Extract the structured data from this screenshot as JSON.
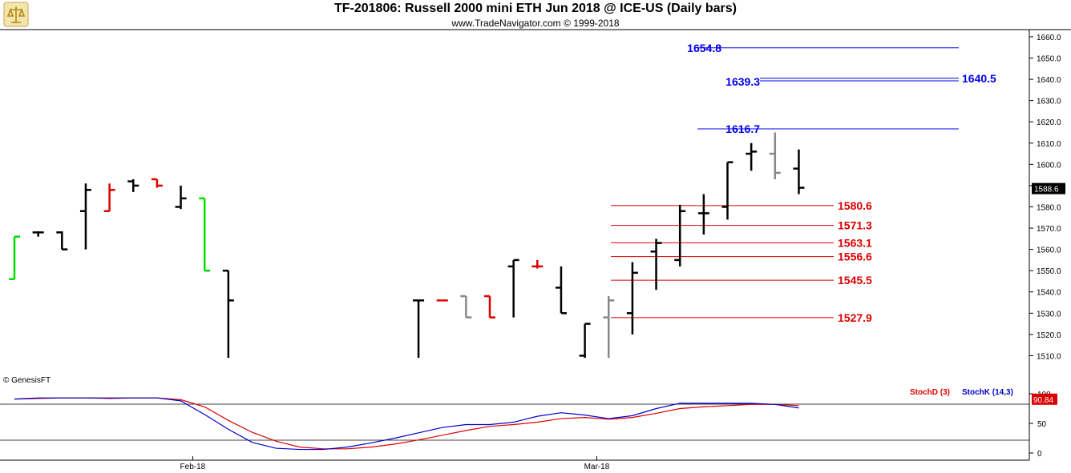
{
  "header": {
    "title": "TF-201806:  Russell 2000 mini ETH Jun 2018 @ ICE-US  (Daily bars)",
    "subtitle": "www.TradeNavigator.com © 1999-2018",
    "watermark": "© GenesisFT"
  },
  "colors": {
    "up": "#00dd00",
    "down": "#dd0000",
    "neutral": "#000000",
    "gray": "#888888",
    "fib_blue": "#0000ee",
    "fib_red": "#dd0000",
    "stoch_d": "#dd0000",
    "stoch_k": "#0000cc"
  },
  "chart_data": [
    {
      "type": "ohlc",
      "yaxis_ticks": [
        "1660.0",
        "1650.0",
        "1640.0",
        "1630.0",
        "1620.0",
        "1610.0",
        "1600.0",
        "1590.0",
        "1580.0",
        "1570.0",
        "1560.0",
        "1550.0",
        "1540.0",
        "1530.0",
        "1520.0",
        "1510.0"
      ],
      "ylim": [
        1500,
        1663
      ],
      "last_price": "1588.6",
      "x_tick_labels": [
        {
          "label": "Feb-18",
          "bar": 7.5
        },
        {
          "label": "Mar-18",
          "bar": 24.5
        }
      ],
      "bars": [
        {
          "bar": 0,
          "o": 1546,
          "h": 1566,
          "l": 1546,
          "c": 1566,
          "color": "up"
        },
        {
          "bar": 1,
          "o": 1568,
          "h": 1568.5,
          "l": 1566,
          "c": 1568,
          "color": "neutral"
        },
        {
          "bar": 2,
          "o": 1568,
          "h": 1568.5,
          "l": 1560,
          "c": 1560,
          "color": "neutral"
        },
        {
          "bar": 3,
          "o": 1578,
          "h": 1591,
          "l": 1560,
          "c": 1588,
          "color": "neutral"
        },
        {
          "bar": 4,
          "o": 1578,
          "h": 1591,
          "l": 1578,
          "c": 1588,
          "color": "down"
        },
        {
          "bar": 5,
          "o": 1592,
          "h": 1593,
          "l": 1587,
          "c": 1590,
          "color": "neutral"
        },
        {
          "bar": 6,
          "o": 1593,
          "h": 1593,
          "l": 1589,
          "c": 1590,
          "color": "down"
        },
        {
          "bar": 7,
          "o": 1580,
          "h": 1590,
          "l": 1579,
          "c": 1584,
          "color": "neutral"
        },
        {
          "bar": 8,
          "o": 1584,
          "h": 1584,
          "l": 1550,
          "c": 1550,
          "color": "up"
        },
        {
          "bar": 9,
          "o": 1550,
          "h": 1550,
          "l": 1509,
          "c": 1536,
          "color": "neutral"
        },
        {
          "bar": 17,
          "o": 1536,
          "h": 1536,
          "l": 1509,
          "c": 1536,
          "color": "neutral"
        },
        {
          "bar": 18,
          "o": 1536,
          "h": 1536,
          "l": 1536,
          "c": 1536,
          "color": "down"
        },
        {
          "bar": 19,
          "o": 1538,
          "h": 1538,
          "l": 1528,
          "c": 1528,
          "color": "gray"
        },
        {
          "bar": 20,
          "o": 1538,
          "h": 1538,
          "l": 1528,
          "c": 1528,
          "color": "down"
        },
        {
          "bar": 21,
          "o": 1552,
          "h": 1555,
          "l": 1528,
          "c": 1555,
          "color": "neutral"
        },
        {
          "bar": 22,
          "o": 1552,
          "h": 1555,
          "l": 1551,
          "c": 1552,
          "color": "down"
        },
        {
          "bar": 23,
          "o": 1542,
          "h": 1552,
          "l": 1530,
          "c": 1530,
          "color": "neutral"
        },
        {
          "bar": 24,
          "o": 1510,
          "h": 1525,
          "l": 1509,
          "c": 1525,
          "color": "neutral"
        },
        {
          "bar": 25,
          "o": 1528,
          "h": 1538,
          "l": 1509,
          "c": 1536,
          "color": "gray"
        },
        {
          "bar": 26,
          "o": 1530,
          "h": 1554,
          "l": 1520,
          "c": 1549,
          "color": "neutral"
        },
        {
          "bar": 27,
          "o": 1559,
          "h": 1565,
          "l": 1541,
          "c": 1563,
          "color": "neutral"
        },
        {
          "bar": 28,
          "o": 1555,
          "h": 1581,
          "l": 1552,
          "c": 1578,
          "color": "neutral"
        },
        {
          "bar": 29,
          "o": 1577,
          "h": 1586,
          "l": 1567,
          "c": 1577,
          "color": "neutral"
        },
        {
          "bar": 30,
          "o": 1580,
          "h": 1601,
          "l": 1574,
          "c": 1601,
          "color": "neutral"
        },
        {
          "bar": 31,
          "o": 1605,
          "h": 1610,
          "l": 1597,
          "c": 1606,
          "color": "neutral"
        },
        {
          "bar": 32,
          "o": 1605,
          "h": 1615,
          "l": 1593,
          "c": 1596,
          "color": "gray"
        },
        {
          "bar": 33,
          "o": 1598,
          "h": 1607,
          "l": 1586,
          "c": 1589,
          "color": "neutral"
        }
      ],
      "fib_levels_blue": [
        {
          "value": 1654.8,
          "label": "1654.8"
        },
        {
          "value": 1639.3,
          "label": "1639.3"
        },
        {
          "value": 1640.5,
          "label": "1640.5"
        },
        {
          "value": 1616.7,
          "label": "1616.7"
        }
      ],
      "fib_levels_red": [
        {
          "value": 1580.6,
          "label": "1580.6"
        },
        {
          "value": 1571.3,
          "label": "1571.3"
        },
        {
          "value": 1563.1,
          "label": "1563.1"
        },
        {
          "value": 1556.6,
          "label": "1556.6"
        },
        {
          "value": 1545.5,
          "label": "1545.5"
        },
        {
          "value": 1527.9,
          "label": "1527.9"
        }
      ]
    },
    {
      "type": "line",
      "ylim": [
        0,
        100
      ],
      "yaxis_ticks": [
        "100",
        "50",
        "0"
      ],
      "readout": "90.84",
      "legend": [
        "StochD (3)",
        "StochK (14,3)"
      ],
      "series": [
        {
          "name": "StochD (3)",
          "color": "stoch_d",
          "x": [
            0,
            1,
            2,
            3,
            4,
            5,
            6,
            7,
            8,
            9,
            10,
            11,
            12,
            13,
            14,
            15,
            16,
            17,
            18,
            19,
            20,
            21,
            22,
            23,
            24,
            25,
            26,
            27,
            28,
            29,
            30,
            31,
            32,
            33
          ],
          "y": [
            91,
            92,
            93,
            93,
            92,
            93,
            93,
            90,
            78,
            55,
            35,
            20,
            10,
            7,
            7,
            10,
            15,
            22,
            30,
            38,
            45,
            48,
            52,
            58,
            60,
            57,
            60,
            67,
            75,
            78,
            80,
            82,
            82,
            80
          ]
        },
        {
          "name": "StochK (14,3)",
          "color": "stoch_k",
          "x": [
            0,
            1,
            2,
            3,
            4,
            5,
            6,
            7,
            8,
            9,
            10,
            11,
            12,
            13,
            14,
            15,
            16,
            17,
            18,
            19,
            20,
            21,
            22,
            23,
            24,
            25,
            26,
            27,
            28,
            29,
            30,
            31,
            32,
            33
          ],
          "y": [
            91,
            93,
            93,
            93,
            93,
            93,
            93,
            88,
            65,
            40,
            18,
            8,
            6,
            6,
            10,
            17,
            25,
            34,
            43,
            48,
            48,
            52,
            62,
            68,
            64,
            58,
            63,
            75,
            84,
            84,
            84,
            84,
            82,
            76
          ]
        }
      ]
    }
  ]
}
